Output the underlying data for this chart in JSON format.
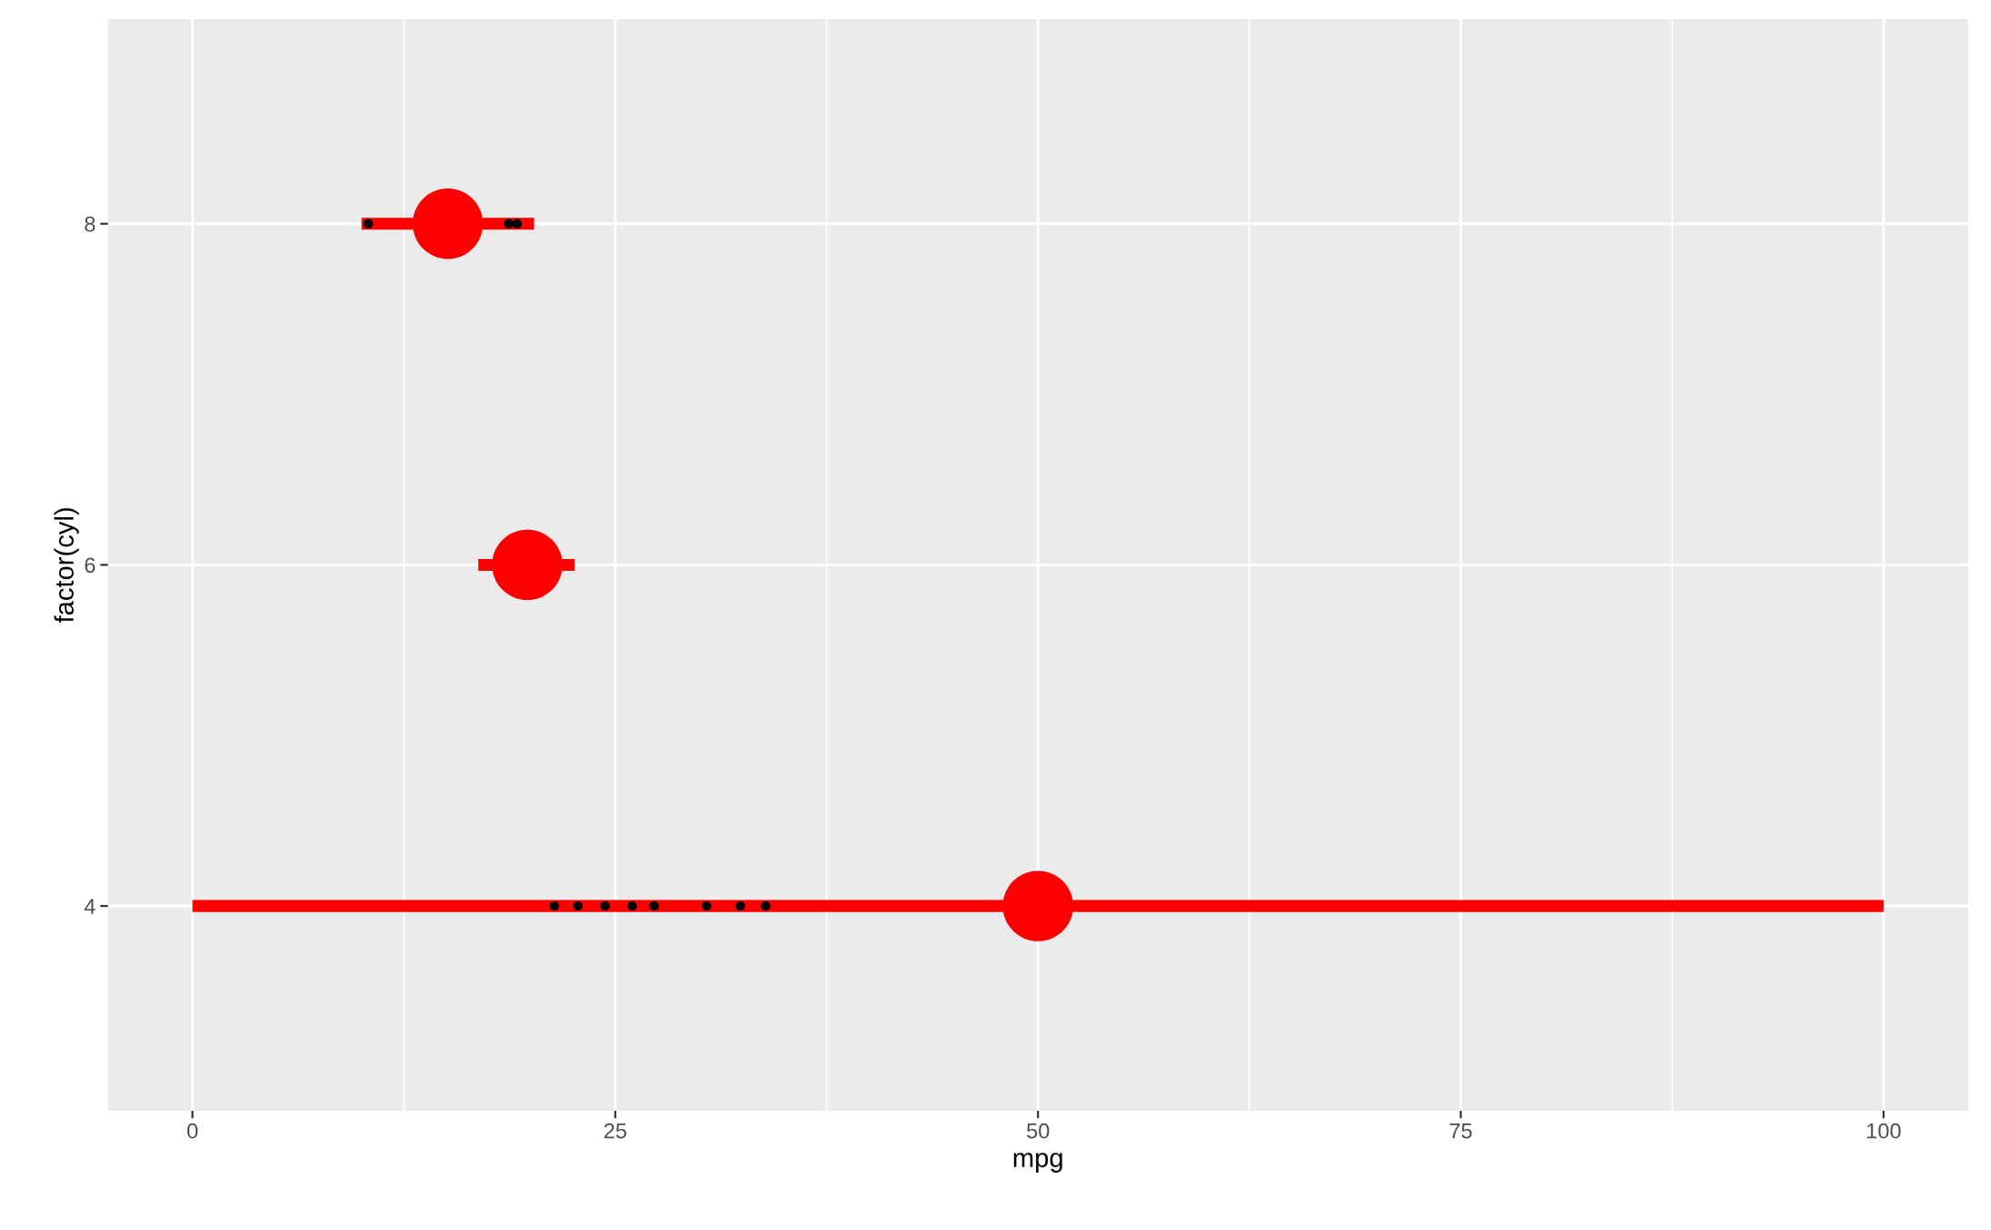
{
  "chart_data": {
    "type": "scatter",
    "orientation": "horizontal",
    "xlabel": "mpg",
    "ylabel": "factor(cyl)",
    "categories": [
      "8",
      "6",
      "4"
    ],
    "xlim": [
      -5,
      105
    ],
    "xticks": [
      0,
      25,
      50,
      75,
      100
    ],
    "grid": true,
    "marker": "circle",
    "series": [
      {
        "color": "#000000",
        "values": [
          10.4,
          null,
          21.4
        ]
      },
      {
        "color": "#000000",
        "values": [
          18.7,
          null,
          22.8
        ]
      },
      {
        "color": "#000000",
        "values": [
          19.2,
          null,
          24.4
        ]
      },
      {
        "color": "#000000",
        "values": [
          null,
          null,
          26.0
        ]
      },
      {
        "color": "#000000",
        "values": [
          null,
          null,
          27.3
        ]
      },
      {
        "color": "#000000",
        "values": [
          null,
          null,
          30.4
        ]
      },
      {
        "color": "#000000",
        "values": [
          null,
          null,
          32.4
        ]
      },
      {
        "color": "#000000",
        "values": [
          null,
          null,
          33.9
        ]
      },
      {
        "color": "#ff0000",
        "values": [
          15.1,
          19.8,
          50
        ],
        "errors": [
          [
            10,
            20.2
          ],
          [
            16.9,
            22.6
          ],
          [
            0,
            100
          ]
        ]
      }
    ]
  }
}
